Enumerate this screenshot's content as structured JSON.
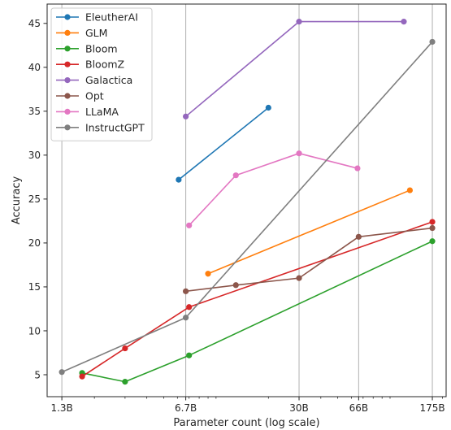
{
  "chart_data": {
    "type": "line",
    "title": "",
    "xlabel": "Parameter count (log scale)",
    "ylabel": "Accuracy",
    "x_scale": "log",
    "x_ticks": [
      {
        "value": 1.3,
        "label": "1.3B"
      },
      {
        "value": 6.7,
        "label": "6.7B"
      },
      {
        "value": 30,
        "label": "30B"
      },
      {
        "value": 66,
        "label": "66B"
      },
      {
        "value": 175,
        "label": "175B"
      }
    ],
    "y_ticks": [
      5,
      10,
      15,
      20,
      25,
      30,
      35,
      40,
      45
    ],
    "xlim": [
      1.07,
      210
    ],
    "ylim": [
      2.5,
      47.2
    ],
    "grid": "vertical at x ticks",
    "legend_position": "top-left",
    "series": [
      {
        "name": "EleutherAI",
        "color": "#1f77b4",
        "x": [
          6.1,
          20
        ],
        "y": [
          27.2,
          35.4
        ]
      },
      {
        "name": "GLM",
        "color": "#ff7f0e",
        "x": [
          9,
          130
        ],
        "y": [
          16.5,
          26.0
        ]
      },
      {
        "name": "Bloom",
        "color": "#2ca02c",
        "x": [
          1.7,
          3,
          7,
          175
        ],
        "y": [
          5.2,
          4.2,
          7.2,
          20.2
        ]
      },
      {
        "name": "BloomZ",
        "color": "#d62728",
        "x": [
          1.7,
          3,
          7,
          175
        ],
        "y": [
          4.8,
          8.0,
          12.7,
          22.4
        ]
      },
      {
        "name": "Galactica",
        "color": "#9467bd",
        "x": [
          6.7,
          30,
          120
        ],
        "y": [
          34.4,
          45.2,
          45.2
        ]
      },
      {
        "name": "Opt",
        "color": "#8c564b",
        "x": [
          6.7,
          13,
          30,
          66,
          175
        ],
        "y": [
          14.5,
          15.2,
          16.0,
          20.7,
          21.7
        ]
      },
      {
        "name": "LLaMA",
        "color": "#e377c2",
        "x": [
          7,
          13,
          30,
          65
        ],
        "y": [
          22.0,
          27.7,
          30.2,
          28.5
        ]
      },
      {
        "name": "InstructGPT",
        "color": "#7f7f7f",
        "x": [
          1.3,
          6.7,
          175
        ],
        "y": [
          5.3,
          11.5,
          42.9
        ]
      }
    ]
  }
}
